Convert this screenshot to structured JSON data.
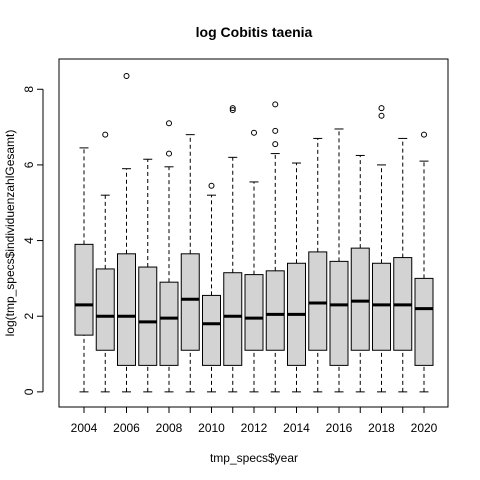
{
  "chart_data": {
    "type": "boxplot",
    "title": "log Cobitis taenia",
    "xlabel": "tmp_specs$year",
    "ylabel": "log(tmp_specs$individuenzahlGesamt)",
    "ylim": [
      -0.4,
      8.8
    ],
    "yticks": [
      0,
      2,
      4,
      6,
      8
    ],
    "xtick_labels": [
      "2004",
      "2006",
      "2008",
      "2010",
      "2012",
      "2014",
      "2016",
      "2018",
      "2020"
    ],
    "box_fill": "#d3d3d3",
    "grid": false,
    "boxes": [
      {
        "year": "2004",
        "min": 0.0,
        "q1": 1.5,
        "median": 2.3,
        "q3": 3.9,
        "max": 6.45,
        "outliers": []
      },
      {
        "year": "2005",
        "min": 0.0,
        "q1": 1.1,
        "median": 2.0,
        "q3": 3.25,
        "max": 5.2,
        "outliers": [
          6.8
        ]
      },
      {
        "year": "2006",
        "min": 0.0,
        "q1": 0.7,
        "median": 2.0,
        "q3": 3.65,
        "max": 5.9,
        "outliers": [
          8.35
        ]
      },
      {
        "year": "2007",
        "min": 0.0,
        "q1": 0.7,
        "median": 1.85,
        "q3": 3.3,
        "max": 6.15,
        "outliers": []
      },
      {
        "year": "2008",
        "min": 0.0,
        "q1": 0.7,
        "median": 1.95,
        "q3": 2.9,
        "max": 5.95,
        "outliers": [
          6.3,
          7.1
        ]
      },
      {
        "year": "2009",
        "min": 0.0,
        "q1": 1.1,
        "median": 2.45,
        "q3": 3.65,
        "max": 6.8,
        "outliers": []
      },
      {
        "year": "2010",
        "min": 0.0,
        "q1": 0.7,
        "median": 1.8,
        "q3": 2.55,
        "max": 5.2,
        "outliers": [
          5.45
        ]
      },
      {
        "year": "2011",
        "min": 0.0,
        "q1": 0.7,
        "median": 2.0,
        "q3": 3.15,
        "max": 6.2,
        "outliers": [
          7.45,
          7.5
        ]
      },
      {
        "year": "2012",
        "min": 0.0,
        "q1": 1.1,
        "median": 1.95,
        "q3": 3.1,
        "max": 5.55,
        "outliers": [
          6.85
        ]
      },
      {
        "year": "2013",
        "min": 0.0,
        "q1": 1.1,
        "median": 2.05,
        "q3": 3.2,
        "max": 6.3,
        "outliers": [
          6.55,
          6.9,
          7.6
        ]
      },
      {
        "year": "2014",
        "min": 0.0,
        "q1": 0.7,
        "median": 2.05,
        "q3": 3.4,
        "max": 6.05,
        "outliers": []
      },
      {
        "year": "2015",
        "min": 0.0,
        "q1": 1.1,
        "median": 2.35,
        "q3": 3.7,
        "max": 6.7,
        "outliers": []
      },
      {
        "year": "2016",
        "min": 0.0,
        "q1": 0.7,
        "median": 2.3,
        "q3": 3.45,
        "max": 6.95,
        "outliers": []
      },
      {
        "year": "2017",
        "min": 0.0,
        "q1": 1.1,
        "median": 2.4,
        "q3": 3.8,
        "max": 6.25,
        "outliers": []
      },
      {
        "year": "2018",
        "min": 0.0,
        "q1": 1.1,
        "median": 2.3,
        "q3": 3.4,
        "max": 6.0,
        "outliers": [
          7.3,
          7.5
        ]
      },
      {
        "year": "2019",
        "min": 0.0,
        "q1": 1.1,
        "median": 2.3,
        "q3": 3.55,
        "max": 6.7,
        "outliers": []
      },
      {
        "year": "2020",
        "min": 0.0,
        "q1": 0.7,
        "median": 2.2,
        "q3": 3.0,
        "max": 6.1,
        "outliers": [
          6.8
        ]
      }
    ]
  }
}
